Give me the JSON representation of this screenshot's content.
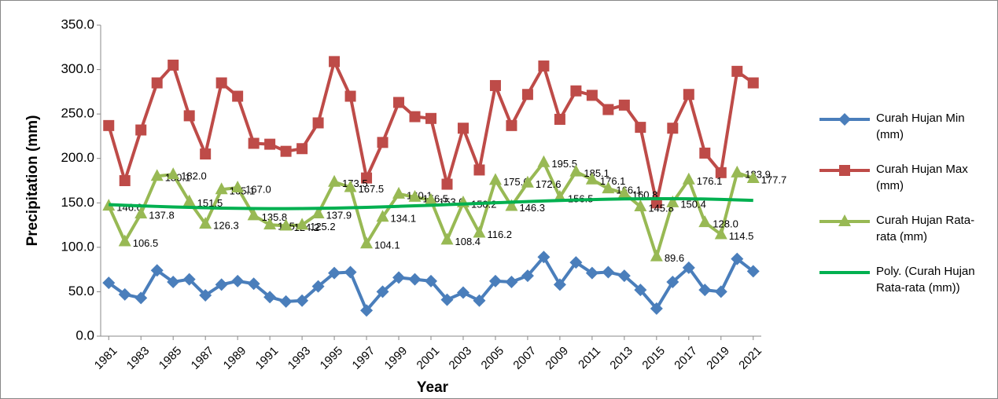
{
  "chart_data": {
    "type": "line",
    "x_label": "Year",
    "y_label": "Precipitation (mm)",
    "x": [
      1981,
      1982,
      1983,
      1984,
      1985,
      1986,
      1987,
      1988,
      1989,
      1990,
      1991,
      1992,
      1993,
      1994,
      1995,
      1996,
      1997,
      1998,
      1999,
      2000,
      2001,
      2002,
      2003,
      2004,
      2005,
      2006,
      2007,
      2008,
      2009,
      2010,
      2011,
      2012,
      2013,
      2014,
      2015,
      2016,
      2017,
      2018,
      2019,
      2020,
      2021
    ],
    "xlim": [
      1980.5,
      2021.5
    ],
    "xticks": [
      1981,
      1983,
      1985,
      1987,
      1989,
      1991,
      1993,
      1995,
      1997,
      1999,
      2001,
      2003,
      2005,
      2007,
      2009,
      2011,
      2013,
      2015,
      2017,
      2019,
      2021
    ],
    "ylim": [
      0,
      350
    ],
    "yticks": [
      {
        "value": 0,
        "label": "0.0"
      },
      {
        "value": 50,
        "label": "50.0"
      },
      {
        "value": 100,
        "label": "100.0"
      },
      {
        "value": 150,
        "label": "150.0"
      },
      {
        "value": 200,
        "label": "200.0"
      },
      {
        "value": 250,
        "label": "250.0"
      },
      {
        "value": 300,
        "label": "300.0"
      },
      {
        "value": 350,
        "label": "350.0"
      }
    ],
    "legend": "right",
    "series": [
      {
        "name": "Curah Hujan Min (mm)",
        "color": "#4a7ebb",
        "marker": "diamond",
        "values": [
          60,
          47,
          43,
          74,
          61,
          64,
          46,
          58,
          62,
          59,
          44,
          39,
          40,
          56,
          71,
          72,
          29,
          50,
          66,
          64,
          62,
          41,
          49,
          40,
          62,
          61,
          68,
          89,
          58,
          83,
          71,
          72,
          68,
          52,
          31,
          61,
          77,
          52,
          50,
          87,
          73
        ]
      },
      {
        "name": "Curah Hujan Max (mm)",
        "color": "#be4b48",
        "marker": "square",
        "values": [
          237,
          175,
          232,
          285,
          305,
          248,
          205,
          285,
          270,
          217,
          216,
          208,
          211,
          240,
          309,
          270,
          178,
          218,
          263,
          247,
          245,
          171,
          234,
          187,
          282,
          237,
          272,
          304,
          244,
          276,
          271,
          255,
          260,
          235,
          150,
          234,
          272,
          206,
          184,
          298,
          285
        ]
      },
      {
        "name": "Curah Hujan Rata-rata (mm)",
        "color": "#98b954",
        "marker": "triangle",
        "values": [
          146.6,
          106.5,
          137.8,
          180.1,
          182.0,
          151.5,
          126.3,
          165.1,
          167.0,
          135.8,
          125.4,
          124.2,
          125.2,
          137.9,
          173.5,
          167.5,
          104.1,
          134.1,
          160.1,
          156.5,
          153.0,
          108.4,
          150.2,
          116.2,
          175.6,
          146.3,
          172.6,
          195.5,
          156.5,
          185.1,
          176.1,
          166.1,
          160.8,
          145.8,
          89.6,
          150.4,
          176.1,
          128.0,
          114.5,
          183.9,
          177.7
        ],
        "value_labels": [
          "146.6",
          "106.5",
          "137.8",
          "180.1",
          "182.0",
          "151.5",
          "126.3",
          "165.1",
          "167.0",
          "135.8",
          "125.4",
          "124.2",
          "125.2",
          "137.9",
          "173.5",
          "167.5",
          "104.1",
          "134.1",
          "160.1",
          "156.5",
          "153.0",
          "108.4",
          "150.2",
          "116.2",
          "175.6",
          "146.3",
          "172.6",
          "195.5",
          "156.5",
          "185.1",
          "176.1",
          "166.1",
          "160.8",
          "145.8",
          "89.6",
          "150.4",
          "176.1",
          "128.0",
          "114.5",
          "183.9",
          "177.7"
        ]
      },
      {
        "name": "Poly. (Curah Hujan Rata-rata (mm))",
        "color": "#00b050",
        "marker": "none",
        "values": [
          148,
          147.3,
          146.6,
          146,
          145.4,
          144.9,
          144.5,
          144.1,
          143.8,
          143.6,
          143.5,
          143.5,
          143.6,
          143.8,
          144.1,
          144.5,
          145,
          145.5,
          146.1,
          146.7,
          147.3,
          148,
          148.7,
          149.4,
          150.1,
          150.8,
          151.5,
          152.1,
          152.7,
          153.2,
          153.7,
          154.1,
          154.4,
          154.6,
          154.7,
          154.7,
          154.6,
          154.3,
          153.9,
          153.4,
          152.8
        ]
      }
    ]
  }
}
